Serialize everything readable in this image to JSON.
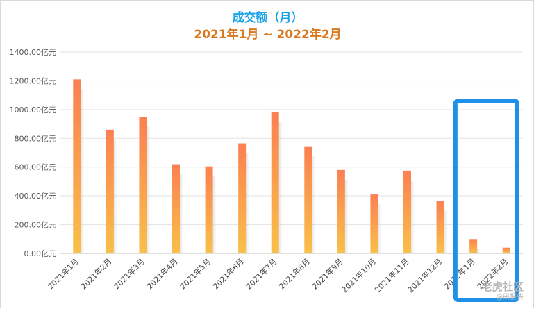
{
  "chart_data": {
    "type": "bar",
    "title": "成交额（月）",
    "subtitle": "2021年1月 ~ 2022年2月",
    "xlabel": "",
    "ylabel": "",
    "categories": [
      "2021年1月",
      "2021年2月",
      "2021年3月",
      "2021年4月",
      "2021年5月",
      "2021年6月",
      "2021年7月",
      "2021年8月",
      "2021年9月",
      "2021年10月",
      "2021年11月",
      "2021年12月",
      "2022年1月",
      "2022年2月"
    ],
    "values": [
      1210,
      860,
      950,
      620,
      605,
      765,
      985,
      745,
      580,
      410,
      575,
      365,
      100,
      40
    ],
    "y_ticks": [
      "0.00亿元",
      "200.00亿元",
      "400.00亿元",
      "600.00亿元",
      "800.00亿元",
      "1000.00亿元",
      "1200.00亿元",
      "1400.00亿元"
    ],
    "ylim": [
      0,
      1400
    ],
    "grid": true,
    "colors": {
      "bar_top": "#fb8052",
      "bar_bottom": "#f9c049",
      "highlight_box": "#1e90e8",
      "grid": "#e3e3e3"
    },
    "highlight": [
      "2022年1月",
      "2022年2月"
    ]
  },
  "watermark": {
    "main": "老虎社区",
    "sub": "@研报告"
  }
}
